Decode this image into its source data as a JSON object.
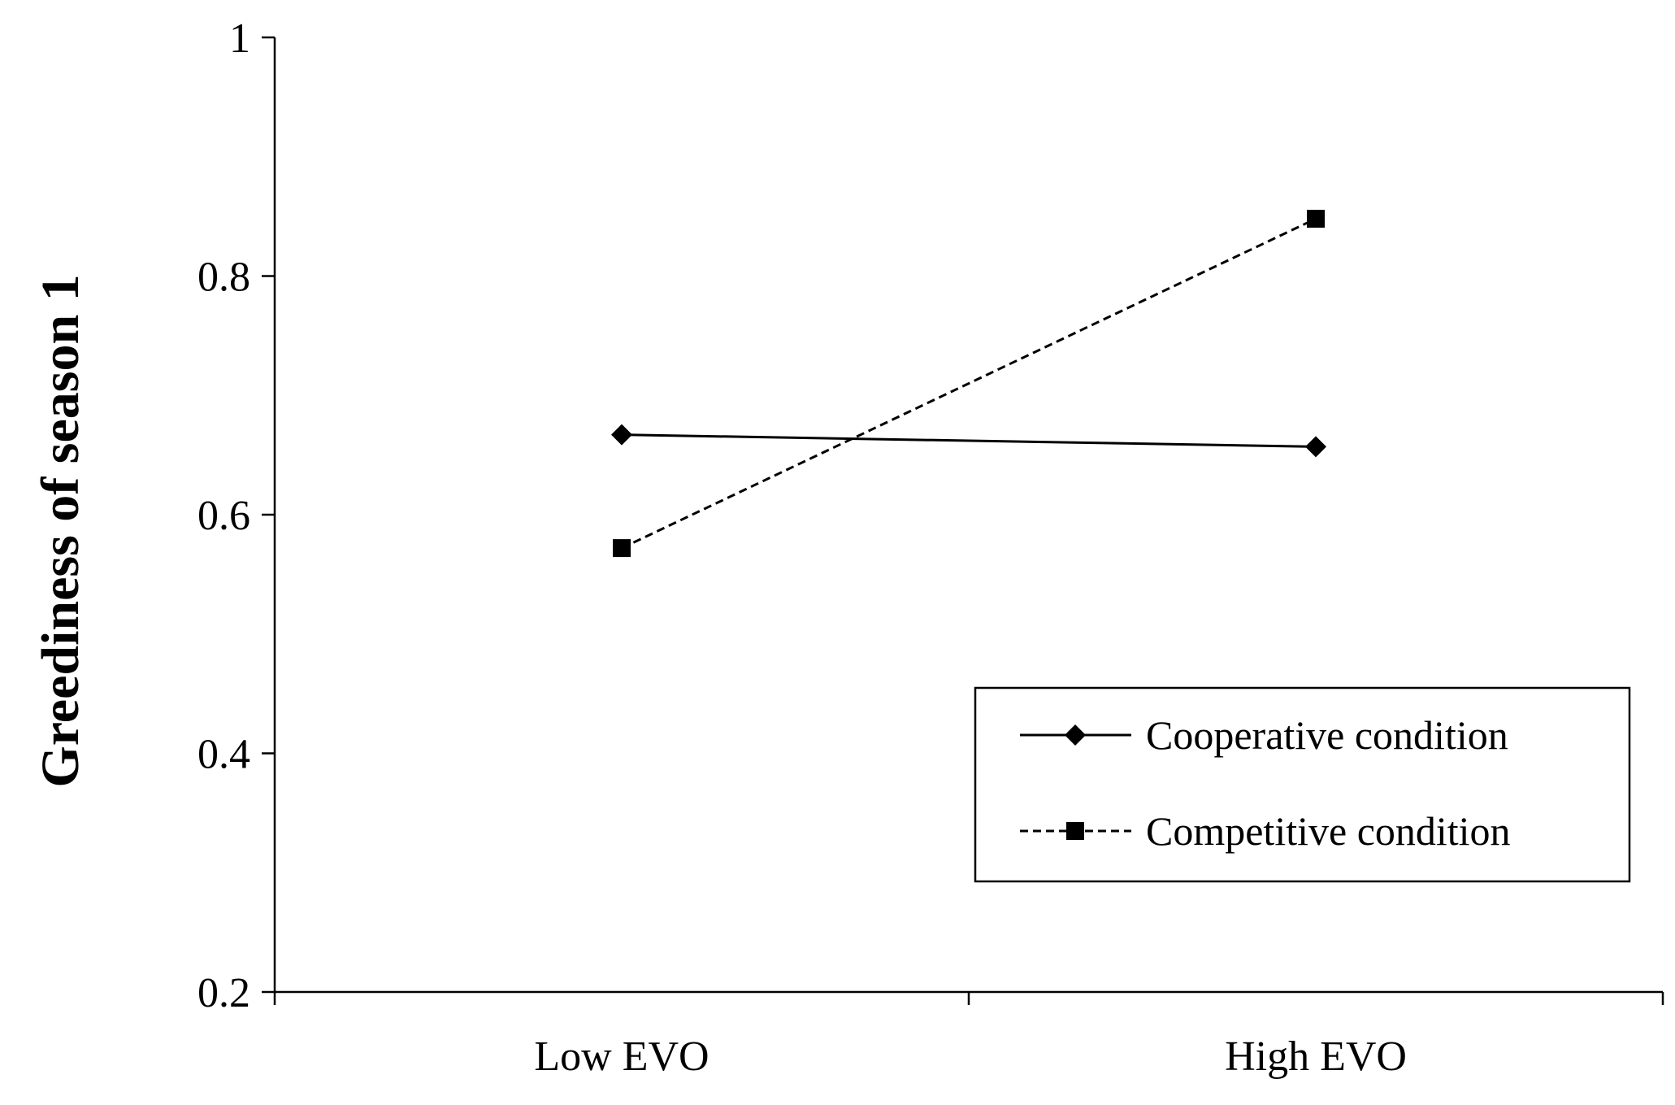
{
  "chart_data": {
    "type": "line",
    "title": "",
    "xlabel": "",
    "ylabel": "Greediness of season 1",
    "categories": [
      "Low EVO",
      "High EVO"
    ],
    "ylim": [
      0.2,
      1
    ],
    "yticks": [
      "0.2",
      "0.4",
      "0.6",
      "0.8",
      "1"
    ],
    "grid": false,
    "legend_position": "bottom-right",
    "series": [
      {
        "name": "Cooperative condition",
        "values": [
          0.667,
          0.657
        ],
        "line_style": "solid",
        "marker": "diamond",
        "color": "#000000"
      },
      {
        "name": "Competitive condition",
        "values": [
          0.572,
          0.848
        ],
        "line_style": "dashed",
        "marker": "square",
        "color": "#000000"
      }
    ]
  }
}
